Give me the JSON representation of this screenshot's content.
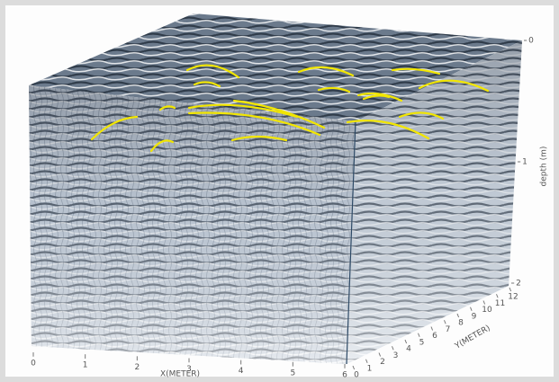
{
  "x_axis": {
    "label": "X(METER)",
    "ticks": [
      0,
      1,
      2,
      3,
      4,
      5,
      6
    ]
  },
  "y_axis": {
    "label": "Y(METER)",
    "ticks": [
      0,
      1,
      2,
      3,
      4,
      5,
      6,
      7,
      8,
      9,
      10,
      11,
      12
    ]
  },
  "depth_axis": {
    "label": "depth (m)",
    "ticks": [
      0,
      1,
      2
    ]
  }
}
